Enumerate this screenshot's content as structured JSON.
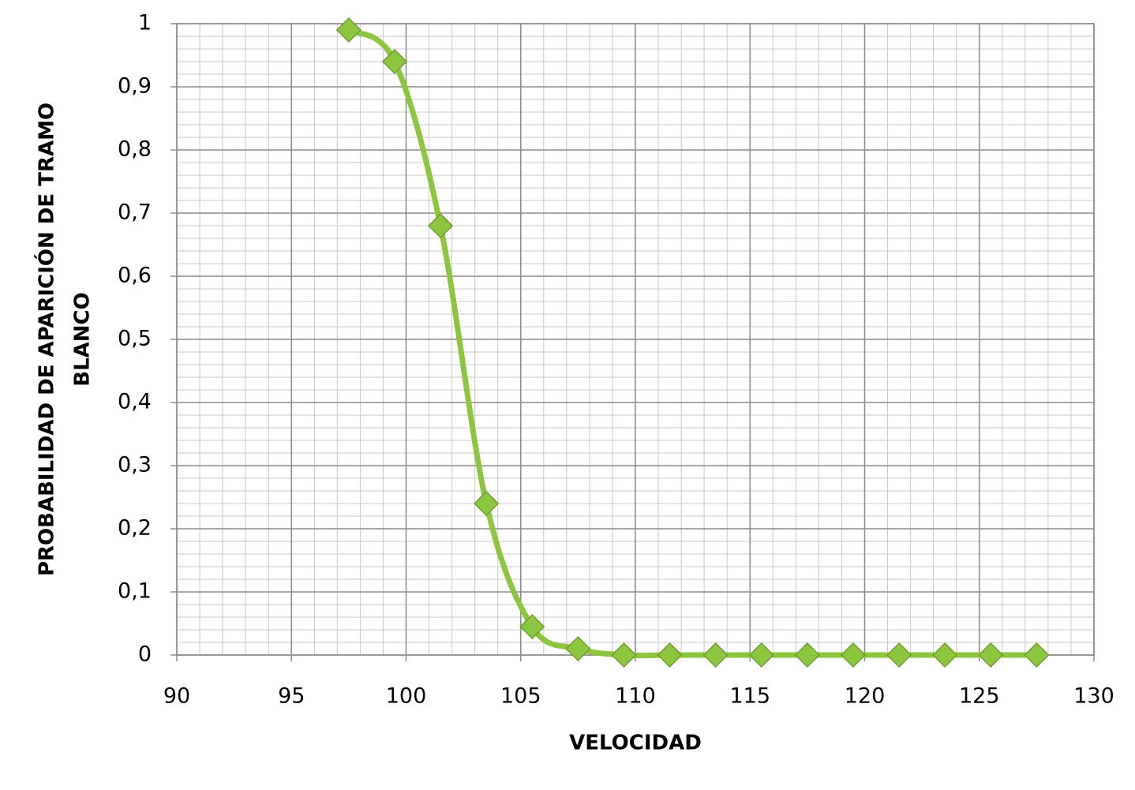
{
  "chart_data": {
    "type": "line",
    "xlabel": "VELOCIDAD",
    "ylabel": [
      "PROBABILIDAD DE APARICIÓN DE TRAMO",
      "BLANCO"
    ],
    "x": [
      97.5,
      99.5,
      101.5,
      103.5,
      105.5,
      107.5,
      109.5,
      111.5,
      113.5,
      115.5,
      117.5,
      119.5,
      121.5,
      123.5,
      125.5,
      127.5
    ],
    "series": [
      {
        "color": "#8cc63f",
        "values": [
          0.99,
          0.94,
          0.68,
          0.24,
          0.045,
          0.01,
          0,
          0,
          0,
          0,
          0,
          0,
          0,
          0,
          0,
          0
        ]
      }
    ],
    "xlim": [
      90,
      130
    ],
    "xticks": [
      90,
      95,
      100,
      105,
      110,
      115,
      120,
      125,
      130
    ],
    "ylim": [
      0,
      1
    ],
    "yticks": [
      0,
      {
        "value": 0.1,
        "label": "0,1"
      },
      {
        "value": 0.2,
        "label": "0,2"
      },
      {
        "value": 0.3,
        "label": "0,3"
      },
      {
        "value": 0.4,
        "label": "0,4"
      },
      {
        "value": 0.5,
        "label": "0,5"
      },
      {
        "value": 0.6,
        "label": "0,6"
      },
      {
        "value": 0.7,
        "label": "0,7"
      },
      {
        "value": 0.8,
        "label": "0,8"
      },
      {
        "value": 0.9,
        "label": "0,9"
      },
      1
    ],
    "grid": true,
    "minor_grid": true,
    "smooth": true,
    "marker": "diamond"
  }
}
